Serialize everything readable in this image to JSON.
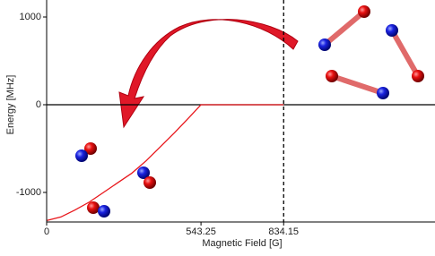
{
  "chart_data": {
    "type": "line",
    "x_label": "Magnetic Field [G]",
    "y_label": "Energy [MHz]",
    "x": [
      0,
      50,
      100,
      150,
      200,
      250,
      300,
      350,
      400,
      450,
      500,
      543.25,
      600,
      700,
      834.15
    ],
    "values": [
      -1320,
      -1280,
      -1200,
      -1110,
      -1000,
      -890,
      -780,
      -640,
      -480,
      -320,
      -150,
      0,
      0,
      0,
      0
    ],
    "color": "#e8161b",
    "xlim": [
      0,
      1370
    ],
    "ylim": [
      -1337,
      1194
    ],
    "xticks": [
      0,
      543.25,
      834.15
    ],
    "yticks": [
      1000,
      0,
      -1000
    ],
    "hline": 0,
    "vline": 834.15
  }
}
